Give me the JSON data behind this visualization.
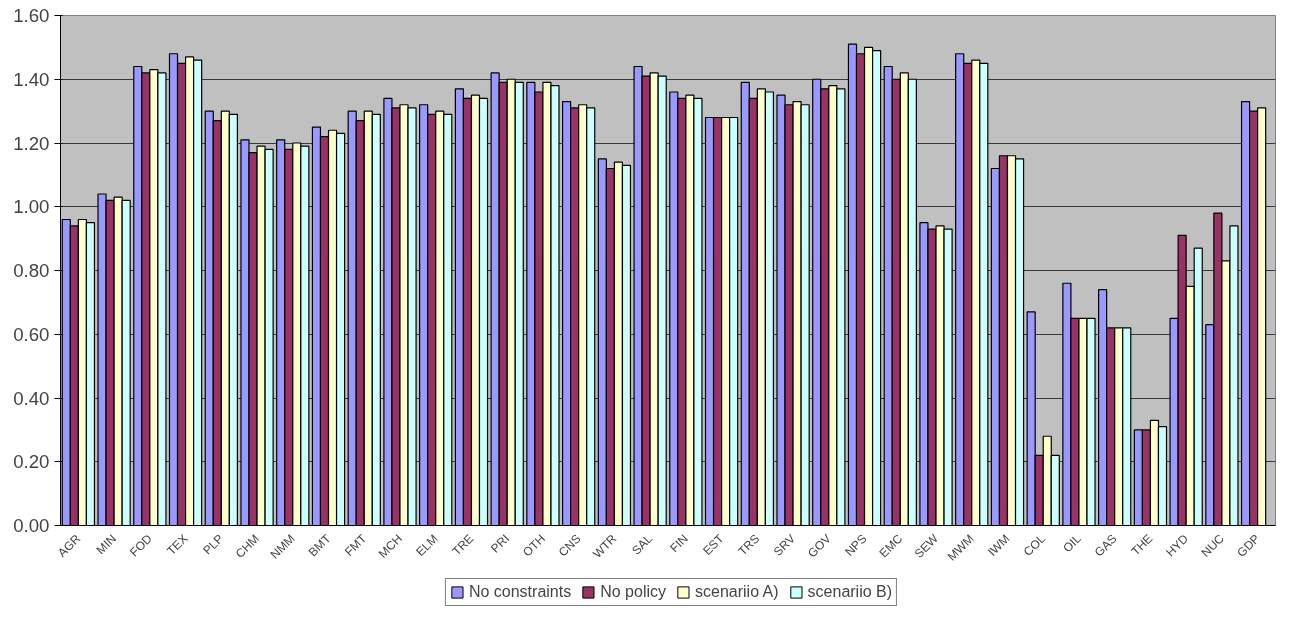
{
  "chart_data": {
    "type": "bar",
    "categories": [
      "AGR",
      "MIN",
      "FOD",
      "TEX",
      "PLP",
      "CHM",
      "NMM",
      "BMT",
      "FMT",
      "MCH",
      "ELM",
      "TRE",
      "PRI",
      "OTH",
      "CNS",
      "WTR",
      "SAL",
      "FIN",
      "EST",
      "TRS",
      "SRV",
      "GOV",
      "NPS",
      "EMC",
      "SEW",
      "MWM",
      "IWM",
      "COL",
      "OIL",
      "GAS",
      "THE",
      "HYD",
      "NUC",
      "GDP"
    ],
    "series": [
      {
        "name": "No constraints",
        "color": "#9999ff",
        "values": [
          0.96,
          1.04,
          1.44,
          1.48,
          1.3,
          1.21,
          1.21,
          1.25,
          1.3,
          1.34,
          1.32,
          1.37,
          1.42,
          1.39,
          1.33,
          1.15,
          1.44,
          1.36,
          1.28,
          1.39,
          1.35,
          1.4,
          1.51,
          1.44,
          0.95,
          1.48,
          1.12,
          0.67,
          0.76,
          0.74,
          0.3,
          0.65,
          0.63,
          1.33
        ]
      },
      {
        "name": "No policy",
        "color": "#993366",
        "values": [
          0.94,
          1.02,
          1.42,
          1.45,
          1.27,
          1.17,
          1.18,
          1.22,
          1.27,
          1.31,
          1.29,
          1.34,
          1.39,
          1.36,
          1.31,
          1.12,
          1.41,
          1.34,
          1.28,
          1.34,
          1.32,
          1.37,
          1.48,
          1.4,
          0.93,
          1.45,
          1.16,
          0.22,
          0.65,
          0.62,
          0.3,
          0.91,
          0.98,
          1.3
        ]
      },
      {
        "name": "scenariio A)",
        "color": "#ffffcc",
        "values": [
          0.96,
          1.03,
          1.43,
          1.47,
          1.3,
          1.19,
          1.2,
          1.24,
          1.3,
          1.32,
          1.3,
          1.35,
          1.4,
          1.39,
          1.32,
          1.14,
          1.42,
          1.35,
          1.28,
          1.37,
          1.33,
          1.38,
          1.5,
          1.42,
          0.94,
          1.46,
          1.16,
          0.28,
          0.65,
          0.62,
          0.33,
          0.75,
          0.83,
          1.31
        ]
      },
      {
        "name": "scenariio B)",
        "color": "#ccffff",
        "values": [
          0.95,
          1.02,
          1.42,
          1.46,
          1.29,
          1.18,
          1.19,
          1.23,
          1.29,
          1.31,
          1.29,
          1.34,
          1.39,
          1.38,
          1.31,
          1.13,
          1.41,
          1.34,
          1.28,
          1.36,
          1.32,
          1.37,
          1.49,
          1.4,
          0.93,
          1.45,
          1.15,
          0.22,
          0.65,
          0.62,
          0.31,
          0.87,
          0.94,
          null
        ]
      }
    ],
    "ylim": [
      0,
      1.6
    ],
    "yticks": [
      {
        "value": 0,
        "label": "0.00"
      },
      {
        "value": 0.2,
        "label": "0.20"
      },
      {
        "value": 0.4,
        "label": "0.40"
      },
      {
        "value": 0.6,
        "label": "0.60"
      },
      {
        "value": 0.8,
        "label": "0.80"
      },
      {
        "value": 1.0,
        "label": "1.00"
      },
      {
        "value": 1.2,
        "label": "1.20"
      },
      {
        "value": 1.4,
        "label": "1.40"
      },
      {
        "value": 1.6,
        "label": "1.60"
      }
    ],
    "grid": "y",
    "legend": "bottom"
  }
}
